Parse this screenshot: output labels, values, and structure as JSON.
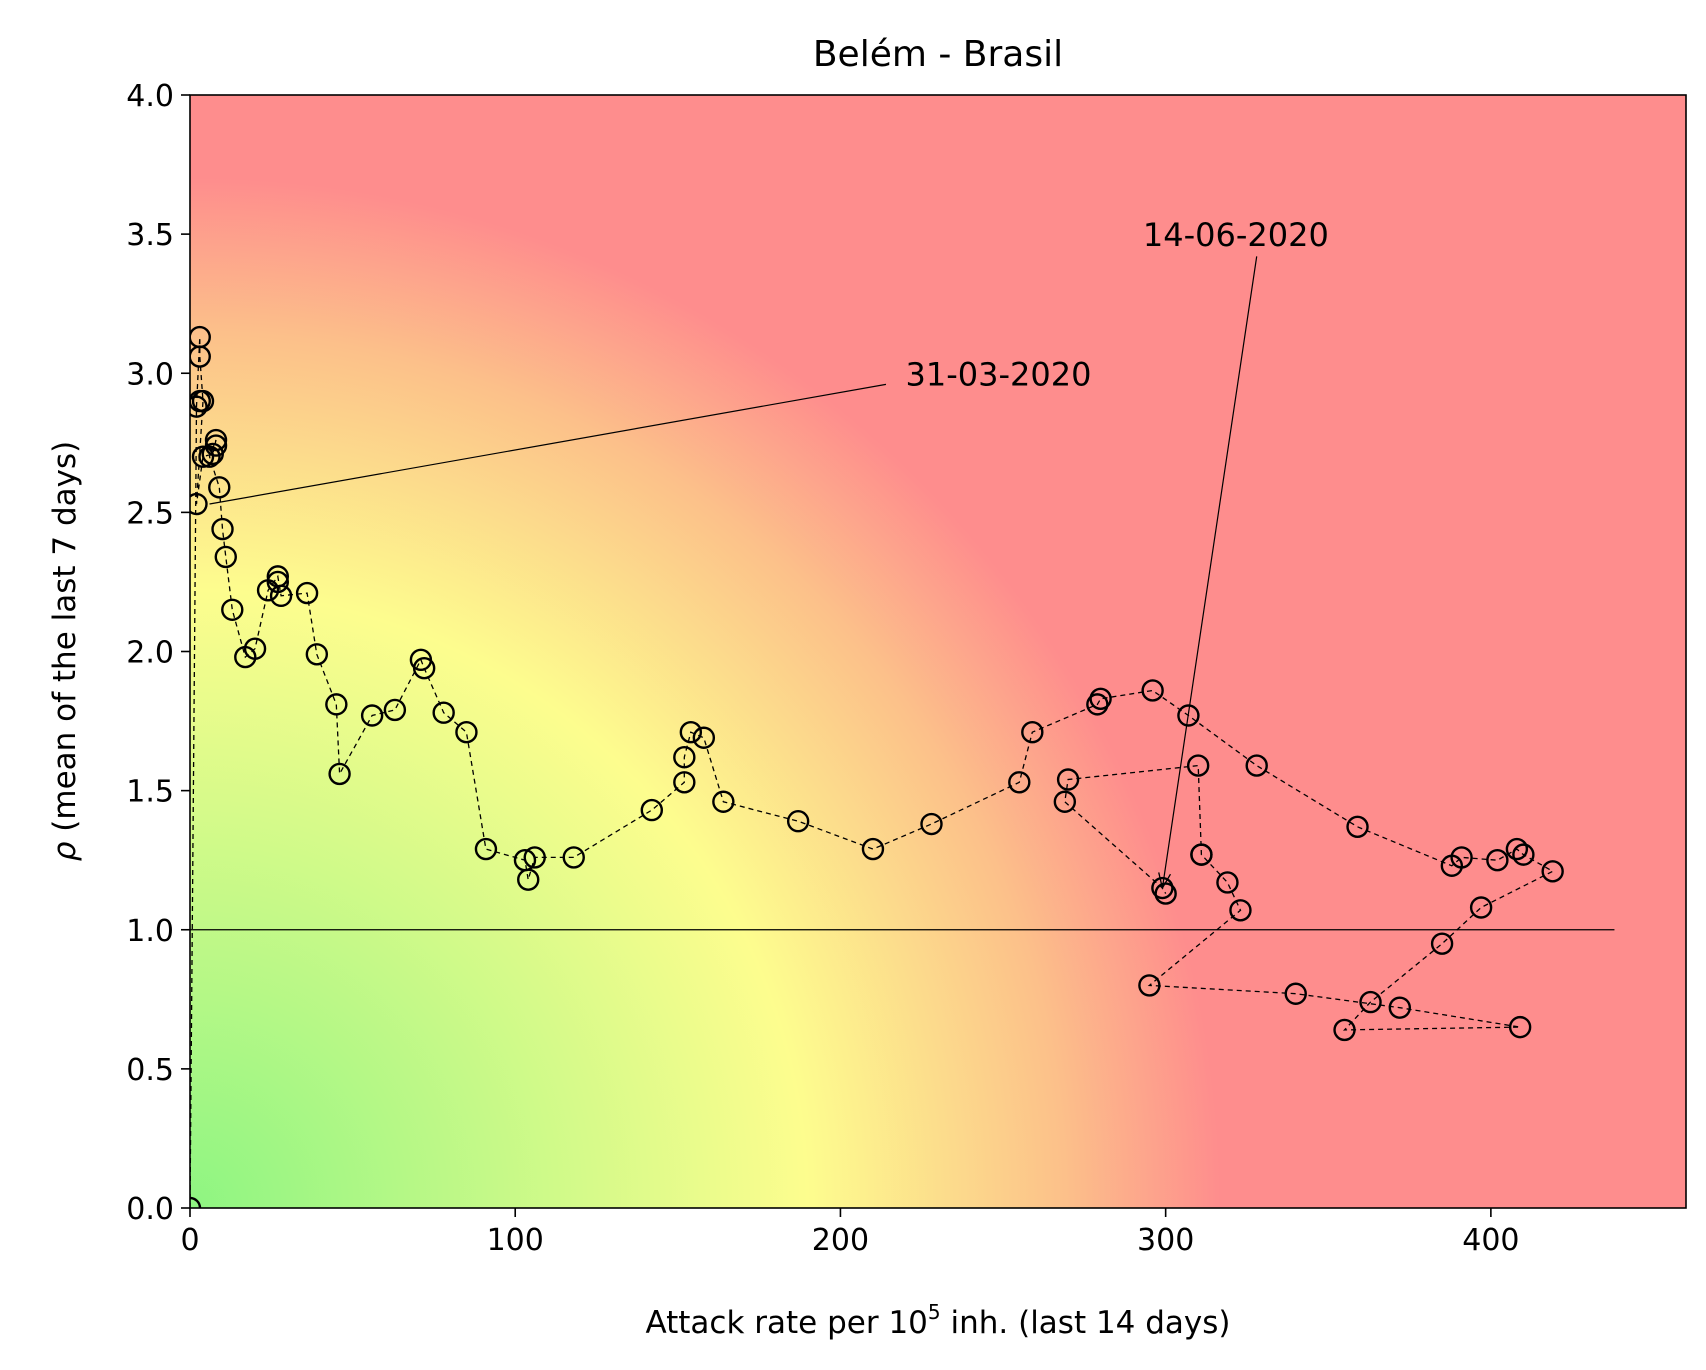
{
  "chart_data": {
    "type": "scatter",
    "title": "Belém - Brasil",
    "xlabel": {
      "pre": "Attack rate per 10",
      "sup": "5",
      "post": " inh. (last 14 days)"
    },
    "ylabel": {
      "symbol": "ρ",
      "text": " (mean of the last 7 days)"
    },
    "xlim": [
      0,
      460
    ],
    "ylim": [
      0,
      4
    ],
    "xticks": [
      0,
      100,
      200,
      300,
      400
    ],
    "xtick_labels": [
      "0",
      "100",
      "200",
      "300",
      "400"
    ],
    "yticks": [
      0,
      0.5,
      1,
      1.5,
      2,
      2.5,
      3,
      3.5,
      4
    ],
    "ytick_labels": [
      "0.0",
      "0.5",
      "1.0",
      "1.5",
      "2.0",
      "2.5",
      "3.0",
      "3.5",
      "4.0"
    ],
    "reference_line": {
      "y": 1.0,
      "x_end": 438
    },
    "background": "risk-gradient green-yellow-red",
    "colors": {
      "green": "#8ef582",
      "yellow": "#fdfd8e",
      "orange": "#fcc08a",
      "red": "#fe8d8d",
      "marker": "#000000"
    },
    "grid": false,
    "points": [
      [
        0,
        0.0
      ],
      [
        2,
        2.88
      ],
      [
        2,
        2.53
      ],
      [
        3,
        3.13
      ],
      [
        3,
        3.06
      ],
      [
        3,
        2.9
      ],
      [
        4,
        2.9
      ],
      [
        4,
        2.7
      ],
      [
        6,
        2.7
      ],
      [
        7,
        2.71
      ],
      [
        8,
        2.76
      ],
      [
        8,
        2.74
      ],
      [
        9,
        2.59
      ],
      [
        10,
        2.44
      ],
      [
        11,
        2.34
      ],
      [
        13,
        2.15
      ],
      [
        17,
        1.98
      ],
      [
        20,
        2.01
      ],
      [
        24,
        2.22
      ],
      [
        27,
        2.27
      ],
      [
        27,
        2.25
      ],
      [
        28,
        2.2
      ],
      [
        36,
        2.21
      ],
      [
        39,
        1.99
      ],
      [
        45,
        1.81
      ],
      [
        46,
        1.56
      ],
      [
        56,
        1.77
      ],
      [
        63,
        1.79
      ],
      [
        71,
        1.97
      ],
      [
        72,
        1.94
      ],
      [
        78,
        1.78
      ],
      [
        85,
        1.71
      ],
      [
        91,
        1.29
      ],
      [
        103,
        1.25
      ],
      [
        104,
        1.18
      ],
      [
        106,
        1.26
      ],
      [
        118,
        1.26
      ],
      [
        142,
        1.43
      ],
      [
        152,
        1.53
      ],
      [
        152,
        1.62
      ],
      [
        154,
        1.71
      ],
      [
        158,
        1.69
      ],
      [
        164,
        1.46
      ],
      [
        187,
        1.39
      ],
      [
        210,
        1.29
      ],
      [
        228,
        1.38
      ],
      [
        255,
        1.53
      ],
      [
        259,
        1.71
      ],
      [
        269,
        1.46
      ],
      [
        270,
        1.54
      ],
      [
        279,
        1.81
      ],
      [
        280,
        1.83
      ],
      [
        296,
        1.86
      ],
      [
        307,
        1.77
      ],
      [
        310,
        1.59
      ],
      [
        311,
        1.27
      ],
      [
        311,
        1.27
      ],
      [
        319,
        1.17
      ],
      [
        323,
        1.07
      ],
      [
        328,
        1.59
      ],
      [
        295,
        0.8
      ],
      [
        299,
        1.15
      ],
      [
        300,
        1.13
      ],
      [
        340,
        0.77
      ],
      [
        355,
        0.64
      ],
      [
        359,
        1.37
      ],
      [
        363,
        0.74
      ],
      [
        372,
        0.72
      ],
      [
        385,
        0.95
      ],
      [
        388,
        1.23
      ],
      [
        391,
        1.26
      ],
      [
        397,
        1.08
      ],
      [
        402,
        1.25
      ],
      [
        408,
        1.29
      ],
      [
        409,
        0.65
      ],
      [
        410,
        1.27
      ],
      [
        419,
        1.21
      ]
    ],
    "path": [
      [
        0,
        0.0
      ],
      [
        2,
        2.88
      ],
      [
        3,
        3.13
      ],
      [
        3,
        3.06
      ],
      [
        4,
        2.9
      ],
      [
        2,
        2.53
      ],
      [
        4,
        2.7
      ],
      [
        7,
        2.71
      ],
      [
        8,
        2.76
      ],
      [
        6,
        2.7
      ],
      [
        9,
        2.59
      ],
      [
        10,
        2.44
      ],
      [
        11,
        2.34
      ],
      [
        13,
        2.15
      ],
      [
        17,
        1.98
      ],
      [
        20,
        2.01
      ],
      [
        24,
        2.22
      ],
      [
        27,
        2.27
      ],
      [
        28,
        2.2
      ],
      [
        36,
        2.21
      ],
      [
        39,
        1.99
      ],
      [
        45,
        1.81
      ],
      [
        46,
        1.56
      ],
      [
        56,
        1.77
      ],
      [
        63,
        1.79
      ],
      [
        71,
        1.97
      ],
      [
        72,
        1.94
      ],
      [
        78,
        1.78
      ],
      [
        85,
        1.71
      ],
      [
        91,
        1.29
      ],
      [
        103,
        1.25
      ],
      [
        104,
        1.18
      ],
      [
        106,
        1.26
      ],
      [
        118,
        1.26
      ],
      [
        142,
        1.43
      ],
      [
        152,
        1.53
      ],
      [
        152,
        1.62
      ],
      [
        154,
        1.71
      ],
      [
        158,
        1.69
      ],
      [
        164,
        1.46
      ],
      [
        187,
        1.39
      ],
      [
        210,
        1.29
      ],
      [
        228,
        1.38
      ],
      [
        255,
        1.53
      ],
      [
        259,
        1.71
      ],
      [
        279,
        1.81
      ],
      [
        280,
        1.83
      ],
      [
        296,
        1.86
      ],
      [
        307,
        1.77
      ],
      [
        328,
        1.59
      ],
      [
        359,
        1.37
      ],
      [
        388,
        1.23
      ],
      [
        391,
        1.26
      ],
      [
        402,
        1.25
      ],
      [
        408,
        1.29
      ],
      [
        410,
        1.27
      ],
      [
        419,
        1.21
      ],
      [
        397,
        1.08
      ],
      [
        385,
        0.95
      ],
      [
        363,
        0.74
      ],
      [
        355,
        0.64
      ],
      [
        409,
        0.65
      ],
      [
        372,
        0.72
      ],
      [
        340,
        0.77
      ],
      [
        295,
        0.8
      ],
      [
        323,
        1.07
      ],
      [
        319,
        1.17
      ],
      [
        311,
        1.27
      ],
      [
        310,
        1.59
      ],
      [
        270,
        1.54
      ],
      [
        269,
        1.46
      ],
      [
        299,
        1.15
      ],
      [
        300,
        1.13
      ]
    ],
    "annotations": [
      {
        "text": "31-03-2020",
        "text_at": [
          220,
          3.0
        ],
        "line_start": [
          214,
          2.96
        ],
        "point_to": [
          6,
          2.53
        ],
        "arrow": false
      },
      {
        "text": "14-06-2020",
        "text_at": [
          293,
          3.5
        ],
        "line_start": [
          328,
          3.42
        ],
        "point_to": [
          299,
          1.15
        ],
        "arrow": true
      }
    ]
  }
}
